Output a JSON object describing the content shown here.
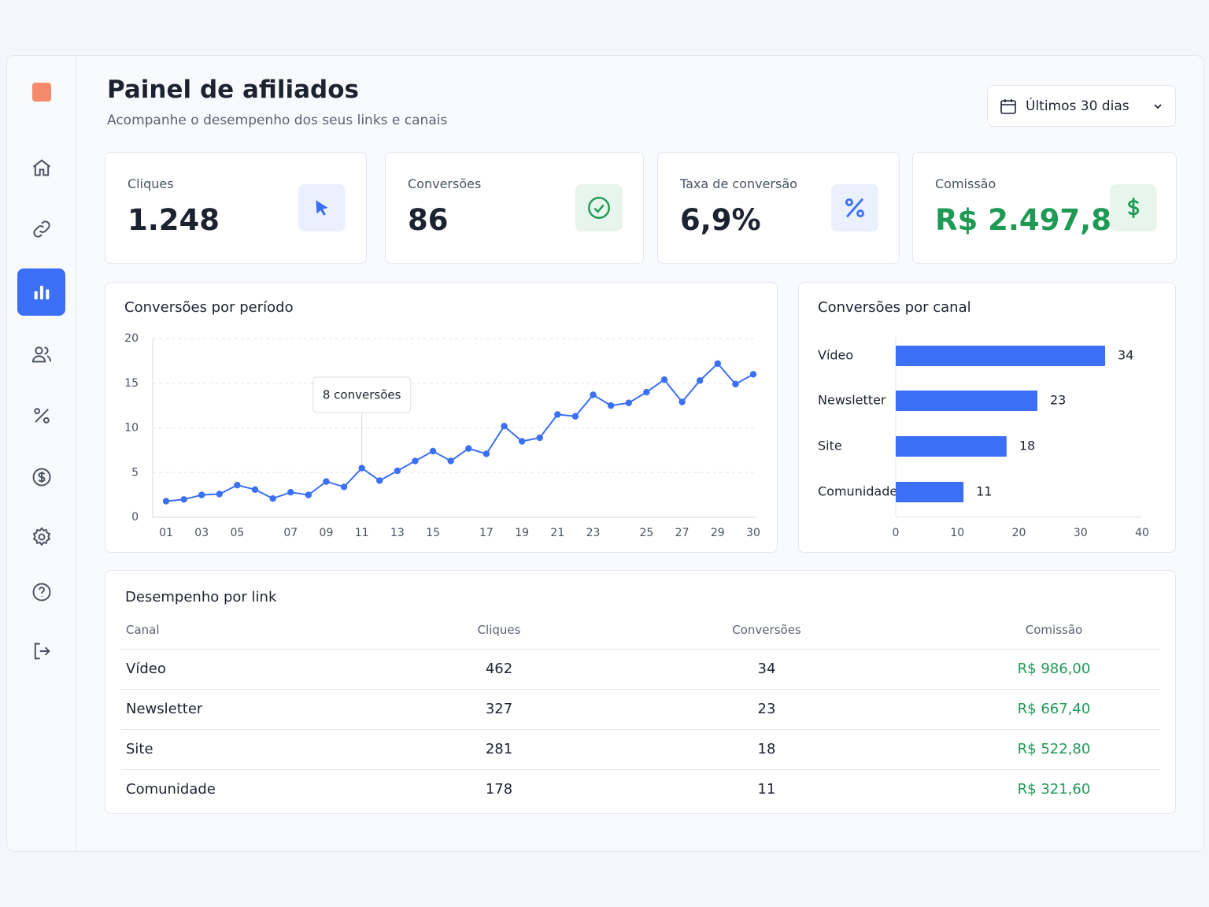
{
  "header": {
    "title": "Painel de afiliados",
    "subtitle": "Acompanhe o desempenho dos seus links e canais",
    "date_range": "Últimos 30 dias"
  },
  "kpis": [
    {
      "label": "Cliques",
      "value": "1.248"
    },
    {
      "label": "Conversões",
      "value": "86"
    },
    {
      "label": "Taxa de conversão",
      "value": "6,9%"
    },
    {
      "label": "Comissão",
      "value": "R$ 2.497,80"
    }
  ],
  "chart_data": [
    {
      "type": "line",
      "title": "Conversões por período",
      "annotation": "8 conversões",
      "categories": [
        "01",
        null,
        "03",
        null,
        "05",
        null,
        null,
        "07",
        null,
        "09",
        null,
        "11",
        null,
        "13",
        null,
        "15",
        null,
        null,
        "17",
        null,
        "19",
        null,
        "21",
        null,
        "23",
        null,
        null,
        "25",
        null,
        "27",
        null,
        "29",
        null,
        "30"
      ],
      "values": [
        1.8,
        2.0,
        2.5,
        2.6,
        3.6,
        3.1,
        2.1,
        2.8,
        2.5,
        4.0,
        3.4,
        5.5,
        4.1,
        5.2,
        6.3,
        7.4,
        6.3,
        7.7,
        7.1,
        10.2,
        8.5,
        8.9,
        11.5,
        11.3,
        13.7,
        12.5,
        12.8,
        14.0,
        15.4,
        12.9,
        15.3,
        17.2,
        14.9,
        16.0
      ],
      "color": "#3b6ff5",
      "ylim": [
        0,
        20
      ],
      "yticks": [
        0,
        5,
        10,
        15,
        20
      ],
      "grid": true
    },
    {
      "type": "bar",
      "orientation": "horizontal",
      "title": "Conversões por canal",
      "categories": [
        "Vídeo",
        "Newsletter",
        "Site",
        "Comunidade"
      ],
      "values": [
        34,
        23,
        18,
        11
      ],
      "color": "#3b6ff5",
      "xlim": [
        0,
        40
      ],
      "xticks": [
        0,
        10,
        20,
        30,
        40
      ],
      "grid": false
    }
  ],
  "table": {
    "title": "Desempenho por link",
    "columns": [
      "Canal",
      "Cliques",
      "Conversões",
      "Comissão"
    ],
    "rows": [
      [
        "Vídeo",
        "462",
        "34",
        "R$ 986,00"
      ],
      [
        "Newsletter",
        "327",
        "23",
        "R$ 667,40"
      ],
      [
        "Site",
        "281",
        "18",
        "R$ 522,80"
      ],
      [
        "Comunidade",
        "178",
        "11",
        "R$ 321,60"
      ]
    ]
  }
}
